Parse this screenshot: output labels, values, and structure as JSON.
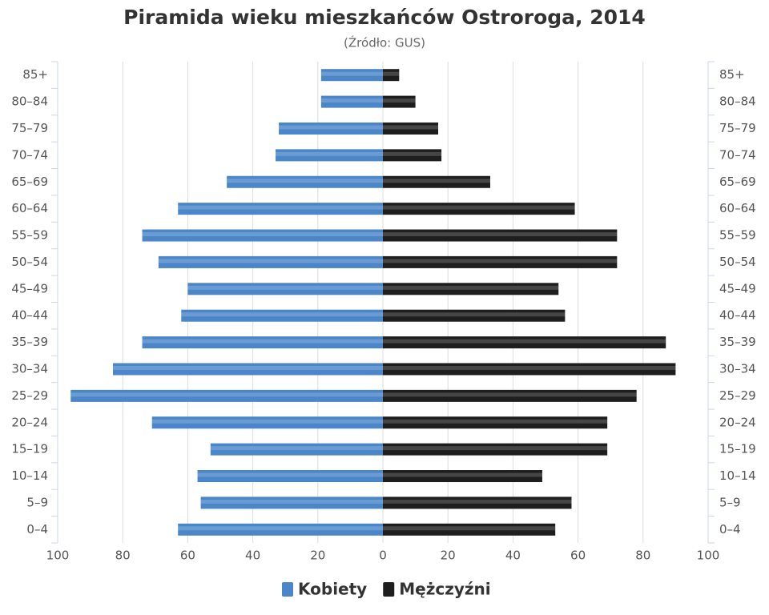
{
  "chart_data": {
    "type": "bar",
    "orientation": "horizontal",
    "stacked": false,
    "title": "Piramida wieku mieszkańców Ostroroga, 2014",
    "subtitle": "(Źródło: GUS)",
    "categories": [
      "0–4",
      "5–9",
      "10–14",
      "15–19",
      "20–24",
      "25–29",
      "30–34",
      "35–39",
      "40–44",
      "45–49",
      "50–54",
      "55–59",
      "60–64",
      "65–69",
      "70–74",
      "75–79",
      "80–84",
      "85+"
    ],
    "series": [
      {
        "name": "Kobiety",
        "color": "#4a86c8",
        "values": [
          -63,
          -56,
          -57,
          -53,
          -71,
          -96,
          -83,
          -74,
          -62,
          -60,
          -69,
          -74,
          -63,
          -48,
          -33,
          -32,
          -19,
          -19
        ]
      },
      {
        "name": "Mężczyźni",
        "color": "#1e1e1e",
        "values": [
          53,
          58,
          49,
          69,
          69,
          78,
          90,
          87,
          56,
          54,
          72,
          72,
          59,
          33,
          18,
          17,
          10,
          5
        ]
      }
    ],
    "xlim": [
      -100,
      100
    ],
    "xticks": [
      {
        "value": -100,
        "label": "100"
      },
      {
        "value": -80,
        "label": "80"
      },
      {
        "value": -60,
        "label": "60"
      },
      {
        "value": -40,
        "label": "40"
      },
      {
        "value": -20,
        "label": "20"
      },
      0,
      20,
      40,
      60,
      80,
      100
    ],
    "grid": true,
    "legend": "bottom"
  }
}
